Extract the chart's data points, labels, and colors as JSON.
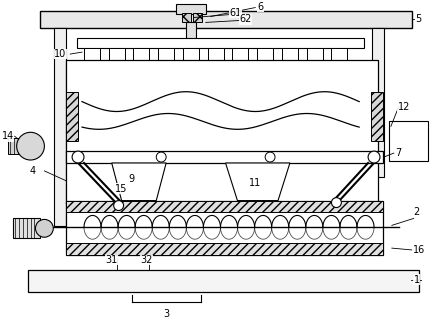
{
  "bg_color": "#ffffff",
  "line_color": "#000000",
  "fig_w": 4.44,
  "fig_h": 3.29,
  "dpi": 100
}
